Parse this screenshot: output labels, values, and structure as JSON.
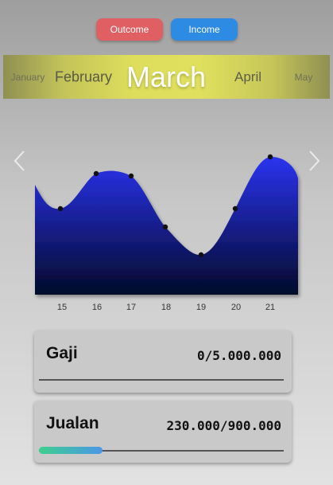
{
  "toggle": {
    "outcome_label": "Outcome",
    "income_label": "Income",
    "outcome_color": "#e05f62",
    "income_color": "#2e8be3"
  },
  "months": {
    "prev2": "January",
    "prev1": "February",
    "current": "March",
    "next1": "April",
    "next2": "May"
  },
  "nav": {
    "prev_icon": "chevron-left-icon",
    "next_icon": "chevron-right-icon"
  },
  "chart_data": {
    "type": "area",
    "x": [
      "15",
      "16",
      "17",
      "18",
      "19",
      "20",
      "21"
    ],
    "fill_colors": [
      "#2b33f0",
      "#020a2a"
    ]
  },
  "budgets": [
    {
      "title": "Gaji",
      "amount": "0/5.000.000",
      "progress": 0
    },
    {
      "title": "Jualan",
      "amount": "230.000/900.000",
      "progress": 0.26
    }
  ]
}
